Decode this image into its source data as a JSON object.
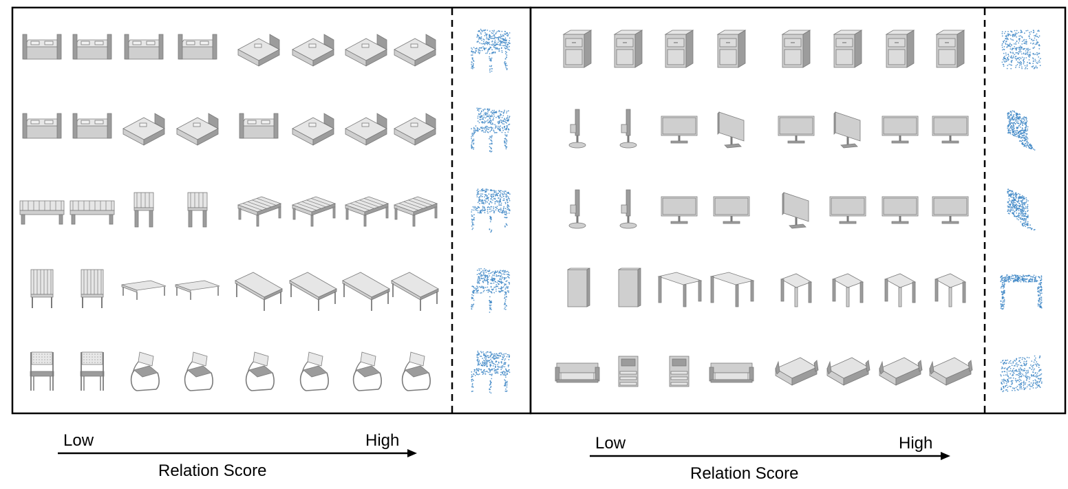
{
  "panels": [
    {
      "id": "left",
      "low_label": "Low",
      "high_label": "High",
      "axis_title": "Relation Score",
      "rows": [
        {
          "cells": [
            "bed",
            "bed",
            "bed",
            "bed",
            "bed-iso",
            "bed-iso",
            "bed-iso",
            "bed-iso"
          ],
          "query": "chair"
        },
        {
          "cells": [
            "bed",
            "bed",
            "bed-iso",
            "bed-iso",
            "bed",
            "bed-iso",
            "bed-iso",
            "bed-iso"
          ],
          "query": "chair"
        },
        {
          "cells": [
            "bench",
            "bench",
            "bench-front",
            "bench-front",
            "bench-iso",
            "bench-iso",
            "bench-iso",
            "bench-iso"
          ],
          "query": "chair"
        },
        {
          "cells": [
            "table-top",
            "table-top",
            "table-low",
            "table-low",
            "table-iso",
            "table-iso",
            "table-iso",
            "table-iso"
          ],
          "query": "chair"
        },
        {
          "cells": [
            "chair",
            "chair",
            "chair-cant",
            "chair-cant",
            "chair-cant",
            "chair-cant",
            "chair-cant",
            "chair-cant"
          ],
          "query": "chair"
        }
      ]
    },
    {
      "id": "right",
      "low_label": "Low",
      "high_label": "High",
      "axis_title": "Relation Score",
      "rows": [
        {
          "cells": [
            "cabinet",
            "cabinet",
            "cabinet",
            "cabinet",
            "cabinet",
            "cabinet",
            "cabinet",
            "cabinet"
          ],
          "query": "cube"
        },
        {
          "cells": [
            "monitor-side",
            "monitor-side",
            "monitor",
            "monitor-angle",
            "monitor",
            "monitor-angle",
            "monitor",
            "monitor"
          ],
          "query": "monitor"
        },
        {
          "cells": [
            "monitor-side",
            "monitor-side",
            "monitor",
            "monitor",
            "monitor-angle",
            "monitor",
            "monitor",
            "monitor"
          ],
          "query": "monitor"
        },
        {
          "cells": [
            "box",
            "box",
            "desk",
            "desk",
            "desk-small",
            "desk-small",
            "desk-small",
            "desk-small"
          ],
          "query": "desk"
        },
        {
          "cells": [
            "sofa",
            "sofa-side",
            "sofa-side",
            "sofa",
            "sofa-iso",
            "sofa-iso",
            "sofa-iso",
            "sofa-iso"
          ],
          "query": "sofa"
        }
      ]
    }
  ],
  "colors": {
    "border": "#000000",
    "shape_face": "#cfcfcf",
    "shape_side": "#9c9c9c",
    "shape_top": "#e6e6e6",
    "shape_edge": "#7a7a7a",
    "point_cloud": "#3d86c6"
  }
}
